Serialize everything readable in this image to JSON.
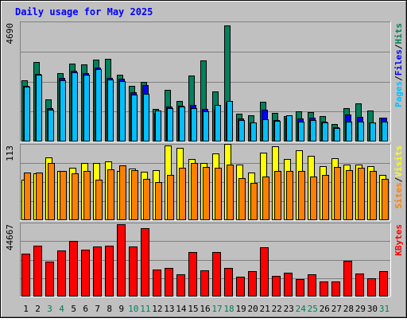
{
  "chart_data": {
    "type": "bar",
    "title": "Daily usage for May 2025",
    "categories": [
      "1",
      "2",
      "3",
      "4",
      "5",
      "6",
      "7",
      "8",
      "9",
      "10",
      "11",
      "12",
      "13",
      "14",
      "15",
      "16",
      "17",
      "18",
      "19",
      "20",
      "21",
      "22",
      "23",
      "24",
      "25",
      "26",
      "27",
      "28",
      "29",
      "30",
      "31"
    ],
    "weekend_days": [
      "3",
      "4",
      "10",
      "11",
      "17",
      "18",
      "24",
      "25",
      "31"
    ],
    "panels": [
      {
        "id": "hits",
        "ymax": 4690,
        "ymax_label": "4690",
        "legend": [
          "Pages",
          "/",
          "Files",
          "/",
          "Hits"
        ],
        "legend_colors": [
          "#00c0ff",
          "#000000",
          "#0000ff",
          "#000000",
          "#00805c"
        ],
        "series": [
          {
            "name": "Hits",
            "color": "#00805c",
            "values": [
              2420,
              3150,
              1670,
              2710,
              3100,
              3050,
              3230,
              3260,
              2640,
              2190,
              2350,
              1290,
              2040,
              1610,
              2600,
              3220,
              1970,
              4610,
              1100,
              1050,
              1570,
              1120,
              1020,
              1200,
              1180,
              1020,
              690,
              1320,
              1510,
              1220,
              940
            ]
          },
          {
            "name": "Files",
            "color": "#0000ff",
            "values": [
              2200,
              2690,
              1320,
              2510,
              2800,
              2700,
              2930,
              2530,
              2500,
              1940,
              2250,
              1140,
              1380,
              1420,
              1450,
              1280,
              1270,
              1540,
              900,
              750,
              1250,
              860,
              960,
              900,
              950,
              800,
              580,
              1080,
              970,
              750,
              950
            ]
          },
          {
            "name": "Pages",
            "color": "#00bfff",
            "values": [
              2180,
              2640,
              1270,
              2420,
              2740,
              2640,
              2870,
              2470,
              2380,
              1870,
              1900,
              1230,
              1320,
              1370,
              1320,
              1210,
              1450,
              1590,
              860,
              740,
              890,
              830,
              1030,
              800,
              850,
              740,
              530,
              790,
              800,
              740,
              780
            ]
          }
        ]
      },
      {
        "id": "visits",
        "ymax": 113,
        "ymax_label": "113",
        "legend": [
          "Sites",
          "/",
          "Visits"
        ],
        "legend_colors": [
          "#ff8000",
          "#000000",
          "#ffff00"
        ],
        "series": [
          {
            "name": "Visits",
            "color": "#ffff00",
            "values": [
              61,
              71,
              95,
              75,
              79,
              86,
              87,
              89,
              74,
              78,
              73,
              76,
              113,
              109,
              92,
              87,
              101,
              115,
              84,
              72,
              102,
              112,
              92,
              106,
              97,
              82,
              94,
              84,
              84,
              82,
              69
            ]
          },
          {
            "name": "Sites",
            "color": "#ff8000",
            "values": [
              72,
              72,
              86,
              75,
              71,
              74,
              61,
              77,
              83,
              76,
              62,
              58,
              68,
              79,
              87,
              80,
              79,
              84,
              64,
              56,
              66,
              75,
              75,
              75,
              66,
              69,
              80,
              76,
              79,
              74,
              62
            ]
          }
        ]
      },
      {
        "id": "kbytes",
        "ymax": 44667,
        "ymax_label": "44667",
        "legend": [
          "KBytes"
        ],
        "legend_colors": [
          "#ff0000"
        ],
        "series": [
          {
            "name": "KBytes",
            "color": "#ff0000",
            "values": [
              26500,
              31200,
              21700,
              28600,
              34200,
              29100,
              30900,
              31500,
              44700,
              30800,
              42200,
              16900,
              17900,
              13500,
              27400,
              16400,
              27400,
              17500,
              12500,
              15900,
              30200,
              12800,
              14700,
              10700,
              13700,
              9200,
              9300,
              21900,
              14100,
              11200,
              15600
            ]
          }
        ]
      }
    ]
  }
}
